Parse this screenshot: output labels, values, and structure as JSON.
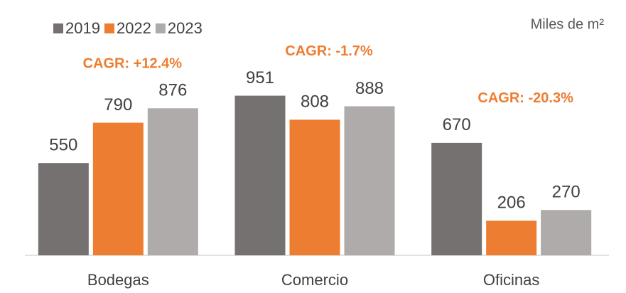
{
  "chart_data": {
    "type": "bar",
    "subtitle": "Miles de m²",
    "categories": [
      "Bodegas",
      "Comercio",
      "Oficinas"
    ],
    "series": [
      {
        "name": "2019",
        "color": "#757171",
        "values": [
          550,
          951,
          670
        ]
      },
      {
        "name": "2022",
        "color": "#ED7D31",
        "values": [
          790,
          808,
          206
        ]
      },
      {
        "name": "2023",
        "color": "#AFABAB",
        "values": [
          876,
          888,
          270
        ]
      }
    ],
    "annotations": [
      "CAGR: +12.4%",
      "CAGR: -1.7%",
      "CAGR: -20.3%"
    ],
    "annotation_color": "#ED7D31",
    "ylim": [
      0,
      1000
    ],
    "legend": "top-left"
  }
}
